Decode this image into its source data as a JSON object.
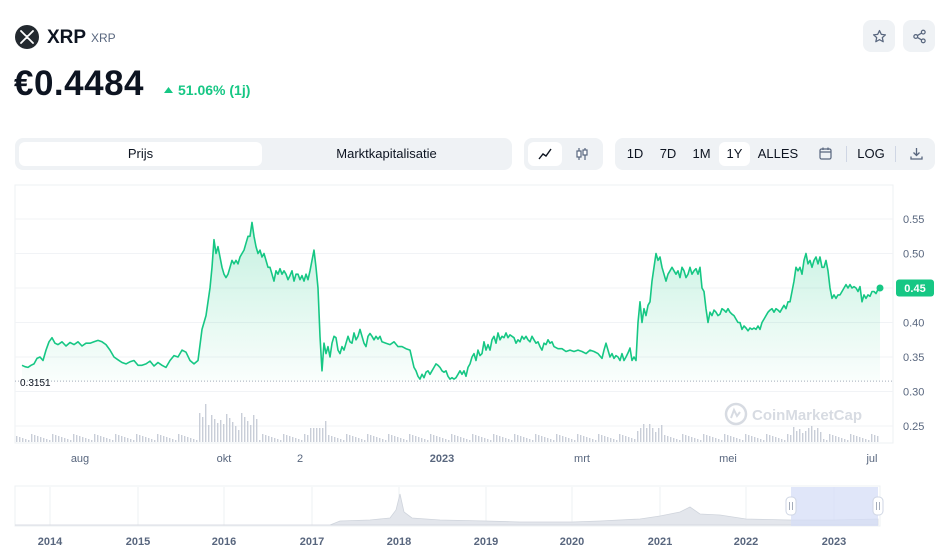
{
  "header": {
    "coin_name": "XRP",
    "coin_symbol": "XRP",
    "price": "€0.4484",
    "change": "51.06% (1j)",
    "change_color": "#16c784",
    "star_icon": "star-icon",
    "share_icon": "share-icon"
  },
  "tabs": [
    {
      "label": "Prijs",
      "active": true
    },
    {
      "label": "Marktkapitalisatie",
      "active": false
    }
  ],
  "chart_types": [
    {
      "icon": "line-chart-icon",
      "active": true
    },
    {
      "icon": "candlestick-icon",
      "active": false
    }
  ],
  "ranges": [
    {
      "label": "1D",
      "active": false
    },
    {
      "label": "7D",
      "active": false
    },
    {
      "label": "1M",
      "active": false
    },
    {
      "label": "1Y",
      "active": true
    },
    {
      "label": "ALLES",
      "active": false
    }
  ],
  "toolbar": {
    "calendar_icon": "calendar-icon",
    "log_label": "LOG",
    "download_icon": "download-icon"
  },
  "watermark": "CoinMarketCap",
  "chart_data": {
    "type": "area",
    "x_ticks": [
      "aug",
      "okt",
      "2",
      "2023",
      "mrt",
      "mei",
      "jul"
    ],
    "y_ticks": [
      "0.55",
      "0.50",
      "0.45",
      "0.40",
      "0.35",
      "0.30",
      "0.25"
    ],
    "ylim": [
      0.23,
      0.57
    ],
    "current_value_label": "0.45",
    "baseline_label": "0.3151",
    "baseline_value": 0.3151,
    "line_color": "#16c784",
    "points": [
      [
        0,
        0.338
      ],
      [
        3,
        0.336
      ],
      [
        6,
        0.335
      ],
      [
        9,
        0.338
      ],
      [
        12,
        0.34
      ],
      [
        15,
        0.348
      ],
      [
        18,
        0.35
      ],
      [
        21,
        0.345
      ],
      [
        24,
        0.36
      ],
      [
        27,
        0.372
      ],
      [
        30,
        0.378
      ],
      [
        33,
        0.37
      ],
      [
        36,
        0.368
      ],
      [
        40,
        0.372
      ],
      [
        44,
        0.366
      ],
      [
        48,
        0.371
      ],
      [
        52,
        0.368
      ],
      [
        56,
        0.372
      ],
      [
        60,
        0.366
      ],
      [
        64,
        0.37
      ],
      [
        68,
        0.37
      ],
      [
        72,
        0.372
      ],
      [
        76,
        0.374
      ],
      [
        80,
        0.372
      ],
      [
        84,
        0.368
      ],
      [
        88,
        0.36
      ],
      [
        92,
        0.35
      ],
      [
        96,
        0.346
      ],
      [
        100,
        0.342
      ],
      [
        104,
        0.34
      ],
      [
        108,
        0.343
      ],
      [
        112,
        0.345
      ],
      [
        116,
        0.338
      ],
      [
        120,
        0.338
      ],
      [
        124,
        0.34
      ],
      [
        128,
        0.344
      ],
      [
        132,
        0.337
      ],
      [
        136,
        0.342
      ],
      [
        140,
        0.338
      ],
      [
        144,
        0.335
      ],
      [
        148,
        0.345
      ],
      [
        152,
        0.352
      ],
      [
        156,
        0.35
      ],
      [
        160,
        0.36
      ],
      [
        164,
        0.357
      ],
      [
        168,
        0.345
      ],
      [
        172,
        0.34
      ],
      [
        176,
        0.345
      ],
      [
        180,
        0.39
      ],
      [
        184,
        0.41
      ],
      [
        188,
        0.45
      ],
      [
        190,
        0.48
      ],
      [
        192,
        0.52
      ],
      [
        194,
        0.5
      ],
      [
        196,
        0.51
      ],
      [
        198,
        0.495
      ],
      [
        200,
        0.48
      ],
      [
        202,
        0.47
      ],
      [
        204,
        0.465
      ],
      [
        206,
        0.47
      ],
      [
        208,
        0.48
      ],
      [
        210,
        0.49
      ],
      [
        212,
        0.485
      ],
      [
        214,
        0.49
      ],
      [
        216,
        0.485
      ],
      [
        218,
        0.495
      ],
      [
        220,
        0.5
      ],
      [
        222,
        0.505
      ],
      [
        224,
        0.515
      ],
      [
        226,
        0.525
      ],
      [
        228,
        0.525
      ],
      [
        230,
        0.545
      ],
      [
        232,
        0.525
      ],
      [
        234,
        0.51
      ],
      [
        236,
        0.5
      ],
      [
        238,
        0.505
      ],
      [
        240,
        0.495
      ],
      [
        242,
        0.5
      ],
      [
        244,
        0.49
      ],
      [
        246,
        0.48
      ],
      [
        248,
        0.48
      ],
      [
        250,
        0.47
      ],
      [
        252,
        0.46
      ],
      [
        254,
        0.475
      ],
      [
        256,
        0.47
      ],
      [
        258,
        0.478
      ],
      [
        260,
        0.47
      ],
      [
        262,
        0.475
      ],
      [
        264,
        0.47
      ],
      [
        266,
        0.462
      ],
      [
        268,
        0.468
      ],
      [
        270,
        0.475
      ],
      [
        272,
        0.46
      ],
      [
        274,
        0.47
      ],
      [
        276,
        0.47
      ],
      [
        278,
        0.462
      ],
      [
        280,
        0.468
      ],
      [
        282,
        0.46
      ],
      [
        284,
        0.47
      ],
      [
        286,
        0.462
      ],
      [
        288,
        0.475
      ],
      [
        290,
        0.49
      ],
      [
        292,
        0.505
      ],
      [
        294,
        0.48
      ],
      [
        296,
        0.45
      ],
      [
        298,
        0.38
      ],
      [
        300,
        0.33
      ],
      [
        302,
        0.37
      ],
      [
        304,
        0.355
      ],
      [
        306,
        0.365
      ],
      [
        308,
        0.35
      ],
      [
        310,
        0.37
      ],
      [
        312,
        0.38
      ],
      [
        314,
        0.378
      ],
      [
        316,
        0.36
      ],
      [
        318,
        0.355
      ],
      [
        320,
        0.365
      ],
      [
        322,
        0.36
      ],
      [
        324,
        0.37
      ],
      [
        326,
        0.38
      ],
      [
        328,
        0.372
      ],
      [
        330,
        0.37
      ],
      [
        332,
        0.385
      ],
      [
        334,
        0.375
      ],
      [
        336,
        0.38
      ],
      [
        338,
        0.39
      ],
      [
        340,
        0.38
      ],
      [
        342,
        0.37
      ],
      [
        344,
        0.365
      ],
      [
        346,
        0.38
      ],
      [
        348,
        0.384
      ],
      [
        350,
        0.38
      ],
      [
        352,
        0.375
      ],
      [
        354,
        0.38
      ],
      [
        356,
        0.376
      ],
      [
        358,
        0.38
      ],
      [
        360,
        0.372
      ],
      [
        364,
        0.37
      ],
      [
        368,
        0.368
      ],
      [
        372,
        0.372
      ],
      [
        376,
        0.365
      ],
      [
        380,
        0.365
      ],
      [
        384,
        0.362
      ],
      [
        388,
        0.36
      ],
      [
        392,
        0.335
      ],
      [
        394,
        0.33
      ],
      [
        396,
        0.322
      ],
      [
        398,
        0.318
      ],
      [
        400,
        0.325
      ],
      [
        402,
        0.32
      ],
      [
        404,
        0.328
      ],
      [
        406,
        0.33
      ],
      [
        408,
        0.325
      ],
      [
        410,
        0.33
      ],
      [
        412,
        0.335
      ],
      [
        414,
        0.34
      ],
      [
        416,
        0.338
      ],
      [
        418,
        0.335
      ],
      [
        420,
        0.33
      ],
      [
        422,
        0.328
      ],
      [
        424,
        0.33
      ],
      [
        426,
        0.322
      ],
      [
        428,
        0.318
      ],
      [
        430,
        0.32
      ],
      [
        432,
        0.318
      ],
      [
        434,
        0.32
      ],
      [
        436,
        0.325
      ],
      [
        438,
        0.33
      ],
      [
        440,
        0.325
      ],
      [
        442,
        0.33
      ],
      [
        444,
        0.322
      ],
      [
        446,
        0.335
      ],
      [
        448,
        0.34
      ],
      [
        450,
        0.35
      ],
      [
        452,
        0.355
      ],
      [
        454,
        0.345
      ],
      [
        456,
        0.36
      ],
      [
        458,
        0.352
      ],
      [
        460,
        0.355
      ],
      [
        462,
        0.372
      ],
      [
        464,
        0.36
      ],
      [
        466,
        0.368
      ],
      [
        468,
        0.36
      ],
      [
        470,
        0.375
      ],
      [
        472,
        0.38
      ],
      [
        474,
        0.37
      ],
      [
        476,
        0.385
      ],
      [
        478,
        0.375
      ],
      [
        480,
        0.38
      ],
      [
        482,
        0.378
      ],
      [
        484,
        0.385
      ],
      [
        486,
        0.378
      ],
      [
        488,
        0.382
      ],
      [
        490,
        0.38
      ],
      [
        492,
        0.378
      ],
      [
        494,
        0.37
      ],
      [
        496,
        0.375
      ],
      [
        498,
        0.372
      ],
      [
        500,
        0.38
      ],
      [
        502,
        0.376
      ],
      [
        504,
        0.38
      ],
      [
        506,
        0.375
      ],
      [
        508,
        0.372
      ],
      [
        510,
        0.38
      ],
      [
        512,
        0.375
      ],
      [
        514,
        0.37
      ],
      [
        516,
        0.372
      ],
      [
        518,
        0.365
      ],
      [
        520,
        0.36
      ],
      [
        522,
        0.37
      ],
      [
        524,
        0.368
      ],
      [
        526,
        0.375
      ],
      [
        528,
        0.37
      ],
      [
        530,
        0.372
      ],
      [
        532,
        0.365
      ],
      [
        536,
        0.362
      ],
      [
        540,
        0.362
      ],
      [
        544,
        0.358
      ],
      [
        548,
        0.36
      ],
      [
        552,
        0.358
      ],
      [
        556,
        0.36
      ],
      [
        560,
        0.358
      ],
      [
        564,
        0.355
      ],
      [
        568,
        0.36
      ],
      [
        572,
        0.358
      ],
      [
        576,
        0.355
      ],
      [
        580,
        0.348
      ],
      [
        582,
        0.36
      ],
      [
        584,
        0.37
      ],
      [
        586,
        0.36
      ],
      [
        588,
        0.35
      ],
      [
        590,
        0.355
      ],
      [
        592,
        0.348
      ],
      [
        594,
        0.352
      ],
      [
        596,
        0.35
      ],
      [
        598,
        0.345
      ],
      [
        600,
        0.355
      ],
      [
        602,
        0.345
      ],
      [
        604,
        0.35
      ],
      [
        606,
        0.356
      ],
      [
        608,
        0.363
      ],
      [
        610,
        0.345
      ],
      [
        612,
        0.35
      ],
      [
        614,
        0.345
      ],
      [
        616,
        0.4
      ],
      [
        618,
        0.43
      ],
      [
        620,
        0.4
      ],
      [
        622,
        0.42
      ],
      [
        624,
        0.41
      ],
      [
        626,
        0.425
      ],
      [
        628,
        0.43
      ],
      [
        630,
        0.46
      ],
      [
        632,
        0.48
      ],
      [
        634,
        0.5
      ],
      [
        636,
        0.49
      ],
      [
        638,
        0.495
      ],
      [
        640,
        0.48
      ],
      [
        642,
        0.47
      ],
      [
        644,
        0.46
      ],
      [
        646,
        0.47
      ],
      [
        648,
        0.475
      ],
      [
        650,
        0.48
      ],
      [
        652,
        0.475
      ],
      [
        654,
        0.47
      ],
      [
        656,
        0.475
      ],
      [
        658,
        0.465
      ],
      [
        660,
        0.48
      ],
      [
        662,
        0.475
      ],
      [
        664,
        0.465
      ],
      [
        666,
        0.47
      ],
      [
        668,
        0.48
      ],
      [
        670,
        0.47
      ],
      [
        672,
        0.475
      ],
      [
        674,
        0.478
      ],
      [
        676,
        0.47
      ],
      [
        678,
        0.48
      ],
      [
        680,
        0.45
      ],
      [
        682,
        0.445
      ],
      [
        684,
        0.42
      ],
      [
        686,
        0.4
      ],
      [
        688,
        0.415
      ],
      [
        690,
        0.41
      ],
      [
        692,
        0.418
      ],
      [
        694,
        0.415
      ],
      [
        696,
        0.41
      ],
      [
        698,
        0.412
      ],
      [
        700,
        0.42
      ],
      [
        702,
        0.418
      ],
      [
        704,
        0.415
      ],
      [
        706,
        0.42
      ],
      [
        708,
        0.415
      ],
      [
        710,
        0.412
      ],
      [
        712,
        0.41
      ],
      [
        714,
        0.405
      ],
      [
        716,
        0.4
      ],
      [
        718,
        0.4
      ],
      [
        720,
        0.39
      ],
      [
        722,
        0.395
      ],
      [
        724,
        0.392
      ],
      [
        726,
        0.388
      ],
      [
        728,
        0.392
      ],
      [
        730,
        0.39
      ],
      [
        732,
        0.392
      ],
      [
        734,
        0.39
      ],
      [
        736,
        0.395
      ],
      [
        738,
        0.39
      ],
      [
        740,
        0.4
      ],
      [
        742,
        0.405
      ],
      [
        744,
        0.41
      ],
      [
        746,
        0.415
      ],
      [
        748,
        0.418
      ],
      [
        750,
        0.42
      ],
      [
        752,
        0.415
      ],
      [
        754,
        0.42
      ],
      [
        756,
        0.418
      ],
      [
        758,
        0.415
      ],
      [
        760,
        0.42
      ],
      [
        762,
        0.425
      ],
      [
        764,
        0.42
      ],
      [
        766,
        0.43
      ],
      [
        768,
        0.43
      ],
      [
        770,
        0.445
      ],
      [
        772,
        0.46
      ],
      [
        774,
        0.48
      ],
      [
        776,
        0.475
      ],
      [
        778,
        0.48
      ],
      [
        780,
        0.47
      ],
      [
        782,
        0.49
      ],
      [
        784,
        0.5
      ],
      [
        786,
        0.485
      ],
      [
        788,
        0.49
      ],
      [
        790,
        0.48
      ],
      [
        792,
        0.49
      ],
      [
        794,
        0.495
      ],
      [
        796,
        0.485
      ],
      [
        798,
        0.495
      ],
      [
        800,
        0.48
      ],
      [
        802,
        0.48
      ],
      [
        804,
        0.49
      ],
      [
        806,
        0.475
      ],
      [
        808,
        0.45
      ],
      [
        810,
        0.435
      ],
      [
        812,
        0.44
      ],
      [
        814,
        0.435
      ],
      [
        816,
        0.44
      ],
      [
        818,
        0.44
      ],
      [
        820,
        0.445
      ],
      [
        822,
        0.45
      ],
      [
        824,
        0.455
      ],
      [
        826,
        0.45
      ],
      [
        828,
        0.455
      ],
      [
        830,
        0.45
      ],
      [
        832,
        0.452
      ],
      [
        834,
        0.45
      ],
      [
        836,
        0.445
      ],
      [
        838,
        0.452
      ],
      [
        840,
        0.43
      ],
      [
        842,
        0.44
      ],
      [
        844,
        0.435
      ],
      [
        846,
        0.44
      ],
      [
        848,
        0.438
      ],
      [
        850,
        0.445
      ],
      [
        852,
        0.445
      ],
      [
        854,
        0.442
      ],
      [
        856,
        0.448
      ],
      [
        858,
        0.45
      ]
    ],
    "overview_x_ticks": [
      "2014",
      "2015",
      "2016",
      "2017",
      "2018",
      "2019",
      "2020",
      "2021",
      "2022",
      "2023"
    ]
  }
}
